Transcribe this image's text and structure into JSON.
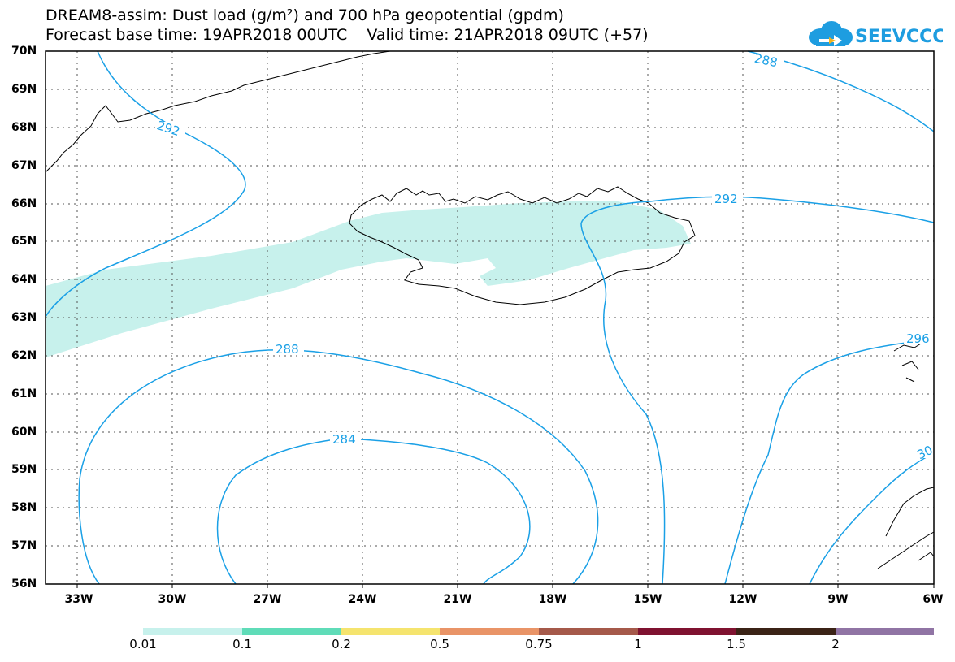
{
  "title_line1": "DREAM8-assim: Dust load (g/m²) and 700 hPa geopotential (gpdm)",
  "title_line2": "Forecast base time: 19APR2018 00UTC    Valid time: 21APR2018 09UTC (+57)",
  "logo_text": "SEEVCCC",
  "lat_labels": [
    "70N",
    "69N",
    "68N",
    "67N",
    "66N",
    "65N",
    "64N",
    "63N",
    "62N",
    "61N",
    "60N",
    "59N",
    "58N",
    "57N",
    "56N"
  ],
  "lon_labels": [
    "33W",
    "30W",
    "27W",
    "24W",
    "21W",
    "18W",
    "15W",
    "12W",
    "9W",
    "6W"
  ],
  "contour_labels": [
    "288",
    "292",
    "292",
    "288",
    "284",
    "296",
    "30"
  ],
  "colorbar_labels": [
    "0.01",
    "0.1",
    "0.2",
    "0.5",
    "0.75",
    "1",
    "1.5",
    "2"
  ],
  "colors": {
    "contour": "#1aa0e6",
    "dust_light": "#c7f1ec",
    "logo": "#1e9de0",
    "colorbar": [
      "#c7f1ec",
      "#5fdcb8",
      "#f5e46e",
      "#e99467",
      "#a5594a",
      "#7f1230",
      "#3b2316",
      "#9074a4"
    ]
  }
}
